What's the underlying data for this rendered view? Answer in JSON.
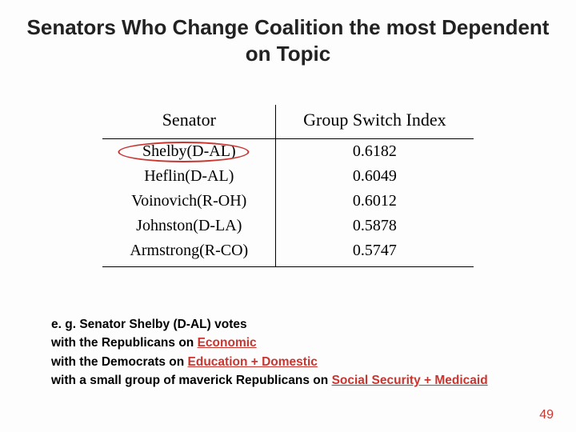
{
  "title": "Senators Who Change Coalition the most Dependent on Topic",
  "table": {
    "headers": {
      "senator": "Senator",
      "index": "Group Switch Index"
    },
    "rows": [
      {
        "senator": "Shelby(D-AL)",
        "index": "0.6182",
        "circled": true
      },
      {
        "senator": "Heflin(D-AL)",
        "index": "0.6049",
        "circled": false
      },
      {
        "senator": "Voinovich(R-OH)",
        "index": "0.6012",
        "circled": false
      },
      {
        "senator": "Johnston(D-LA)",
        "index": "0.5878",
        "circled": false
      },
      {
        "senator": "Armstrong(R-CO)",
        "index": "0.5747",
        "circled": false
      }
    ]
  },
  "caption": {
    "line1_pre": "e. g. Senator Shelby (D-AL) votes",
    "line2_pre": "with the Republicans on ",
    "line2_hl": "Economic",
    "line3_pre": "with the Democrats on ",
    "line3_hl": "Education + Domestic",
    "line4_pre": "with a small group of maverick Republicans on ",
    "line4_hl": "Social Security + Medicaid"
  },
  "page_number": "49"
}
